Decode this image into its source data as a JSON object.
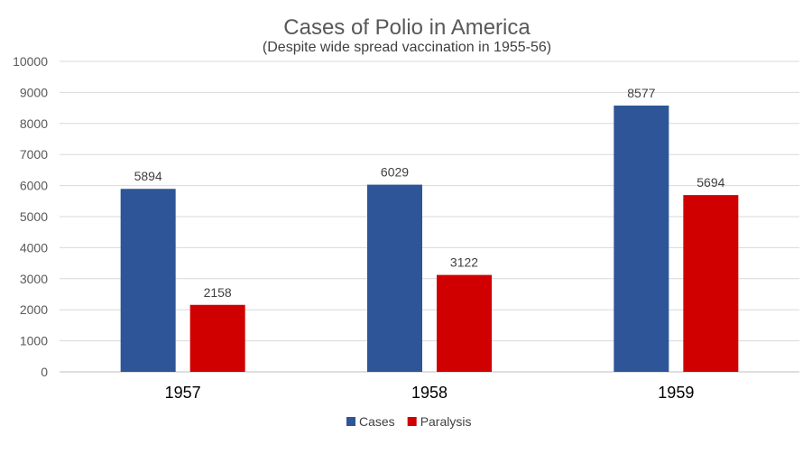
{
  "chart_data": {
    "type": "bar",
    "title": "Cases of Polio in America",
    "subtitle": "(Despite wide spread vaccination in 1955-56)",
    "xlabel": "",
    "ylabel": "",
    "categories": [
      "1957",
      "1958",
      "1959"
    ],
    "series": [
      {
        "name": "Cases",
        "color": "#2E5597",
        "values": [
          5894,
          6029,
          8577
        ]
      },
      {
        "name": "Paralysis",
        "color": "#D00000",
        "values": [
          2158,
          3122,
          5694
        ]
      }
    ],
    "ylim": [
      0,
      10000
    ],
    "yticks": [
      0,
      1000,
      2000,
      3000,
      4000,
      5000,
      6000,
      7000,
      8000,
      9000,
      10000
    ],
    "grid": true,
    "legend": "bottom-center",
    "data_labels": true
  }
}
